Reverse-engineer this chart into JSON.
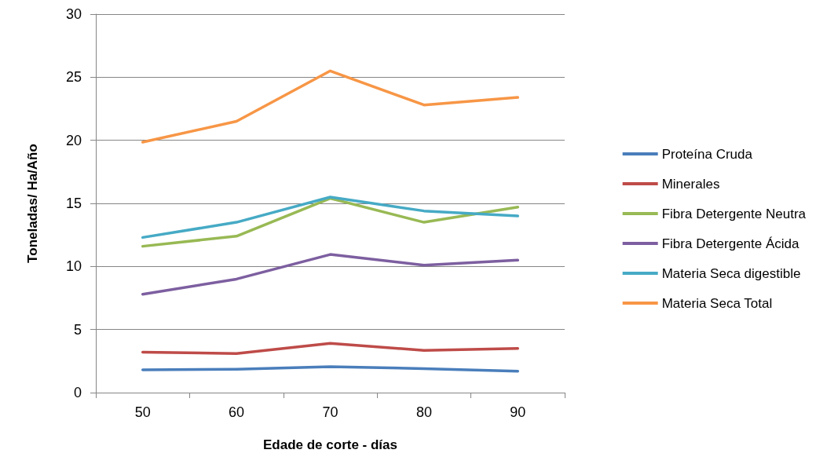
{
  "chart_data": {
    "type": "line",
    "xlabel": "Edade de corte - días",
    "ylabel": "Toneladas/ Ha/Año",
    "categories": [
      "50",
      "60",
      "70",
      "80",
      "90"
    ],
    "series": [
      {
        "name": "Proteína Cruda",
        "color": "#4a7ebb",
        "values": [
          1.8,
          1.85,
          2.05,
          1.9,
          1.7
        ]
      },
      {
        "name": "Minerales",
        "color": "#be4b48",
        "values": [
          3.2,
          3.1,
          3.9,
          3.35,
          3.5
        ]
      },
      {
        "name": "Fibra Detergente Neutra",
        "color": "#98b954",
        "values": [
          11.6,
          12.4,
          15.4,
          13.5,
          14.7
        ]
      },
      {
        "name": "Fibra Detergente Ácida",
        "color": "#7d5fa0",
        "values": [
          7.8,
          9.0,
          10.95,
          10.1,
          10.5
        ]
      },
      {
        "name": "Materia Seca digestible",
        "color": "#46aac5",
        "values": [
          12.3,
          13.5,
          15.5,
          14.4,
          14.0
        ]
      },
      {
        "name": "Materia Seca Total",
        "color": "#f79646",
        "values": [
          19.85,
          21.5,
          25.5,
          22.8,
          23.4
        ]
      }
    ],
    "ylim": [
      0,
      30
    ],
    "yticks": [
      0,
      5,
      10,
      15,
      20,
      25,
      30
    ],
    "grid": "y",
    "legend": "right",
    "marker": "none",
    "line_style": "solid"
  }
}
